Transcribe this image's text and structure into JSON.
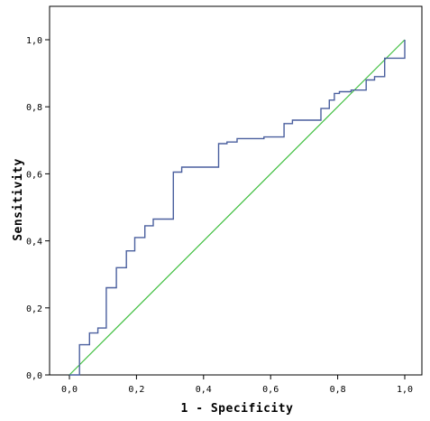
{
  "chart_data": {
    "type": "line",
    "title": "",
    "xlabel": "1 - Specificity",
    "ylabel": "Sensitivity",
    "xlim": [
      0,
      1
    ],
    "ylim": [
      0,
      1
    ],
    "grid": false,
    "x_ticks": [
      "0,0",
      "0,2",
      "0,4",
      "0,6",
      "0,8",
      "1,0"
    ],
    "y_ticks": [
      "0,0",
      "0,2",
      "0,4",
      "0,6",
      "0,8",
      "1,0"
    ],
    "colors": {
      "roc": "#4a5f9e",
      "reference": "#3fbf3f"
    },
    "series": [
      {
        "points": [
          [
            0.0,
            0.0
          ],
          [
            0.03,
            0.0
          ],
          [
            0.03,
            0.09
          ],
          [
            0.06,
            0.09
          ],
          [
            0.06,
            0.125
          ],
          [
            0.085,
            0.125
          ],
          [
            0.085,
            0.14
          ],
          [
            0.11,
            0.14
          ],
          [
            0.11,
            0.26
          ],
          [
            0.14,
            0.26
          ],
          [
            0.14,
            0.32
          ],
          [
            0.17,
            0.32
          ],
          [
            0.17,
            0.37
          ],
          [
            0.195,
            0.37
          ],
          [
            0.195,
            0.41
          ],
          [
            0.225,
            0.41
          ],
          [
            0.225,
            0.445
          ],
          [
            0.25,
            0.445
          ],
          [
            0.25,
            0.465
          ],
          [
            0.31,
            0.465
          ],
          [
            0.31,
            0.605
          ],
          [
            0.335,
            0.605
          ],
          [
            0.335,
            0.62
          ],
          [
            0.445,
            0.62
          ],
          [
            0.445,
            0.69
          ],
          [
            0.47,
            0.69
          ],
          [
            0.47,
            0.695
          ],
          [
            0.5,
            0.695
          ],
          [
            0.5,
            0.705
          ],
          [
            0.58,
            0.705
          ],
          [
            0.58,
            0.71
          ],
          [
            0.64,
            0.71
          ],
          [
            0.64,
            0.75
          ],
          [
            0.665,
            0.75
          ],
          [
            0.665,
            0.76
          ],
          [
            0.75,
            0.76
          ],
          [
            0.75,
            0.795
          ],
          [
            0.775,
            0.795
          ],
          [
            0.775,
            0.82
          ],
          [
            0.79,
            0.82
          ],
          [
            0.79,
            0.84
          ],
          [
            0.805,
            0.84
          ],
          [
            0.805,
            0.845
          ],
          [
            0.84,
            0.845
          ],
          [
            0.84,
            0.85
          ],
          [
            0.885,
            0.85
          ],
          [
            0.885,
            0.88
          ],
          [
            0.91,
            0.88
          ],
          [
            0.91,
            0.89
          ],
          [
            0.94,
            0.89
          ],
          [
            0.94,
            0.945
          ],
          [
            1.0,
            0.945
          ],
          [
            1.0,
            1.0
          ]
        ]
      },
      {
        "points": [
          [
            0,
            0
          ],
          [
            1,
            1
          ]
        ]
      }
    ]
  }
}
